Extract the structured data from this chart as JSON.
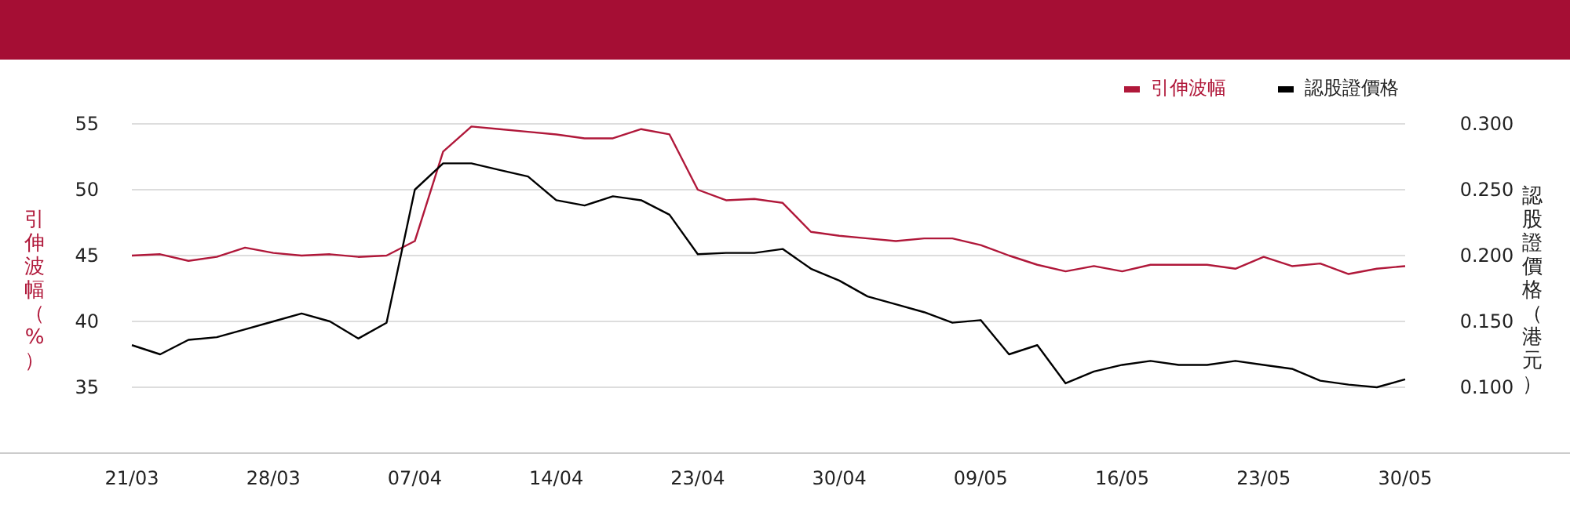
{
  "chart_data": {
    "type": "line",
    "categories": [
      "21/03",
      null,
      null,
      null,
      null,
      "28/03",
      null,
      null,
      null,
      null,
      "07/04",
      null,
      null,
      null,
      null,
      "14/04",
      null,
      null,
      null,
      null,
      "23/04",
      null,
      null,
      null,
      null,
      "30/04",
      null,
      null,
      null,
      null,
      "09/05",
      null,
      null,
      null,
      null,
      "16/05",
      null,
      null,
      null,
      null,
      "23/05",
      null,
      null,
      null,
      null,
      "30/05"
    ],
    "series": [
      {
        "name": "引伸波幅",
        "color": "#b0183a",
        "values": [
          45.0,
          45.1,
          44.6,
          44.9,
          45.6,
          45.2,
          45.0,
          45.1,
          44.9,
          45.0,
          46.1,
          52.9,
          54.8,
          54.6,
          54.4,
          54.2,
          53.9,
          53.9,
          54.6,
          54.2,
          50.0,
          49.2,
          49.3,
          49.0,
          46.8,
          46.5,
          46.3,
          46.1,
          46.3,
          46.3,
          45.8,
          45.0,
          44.3,
          43.8,
          44.2,
          43.8,
          44.3,
          44.3,
          44.3,
          44.0,
          44.9,
          44.2,
          44.4,
          43.6,
          44.0,
          44.2
        ]
      },
      {
        "name": "認股證價格",
        "color": "#000000",
        "axis": "y2",
        "values": [
          0.132,
          0.125,
          0.136,
          0.138,
          0.144,
          0.15,
          0.156,
          0.15,
          0.137,
          0.149,
          0.25,
          0.27,
          0.27,
          0.265,
          0.26,
          0.242,
          0.238,
          0.245,
          0.242,
          0.231,
          0.201,
          0.202,
          0.202,
          0.205,
          0.19,
          0.181,
          0.169,
          0.163,
          0.157,
          0.149,
          0.151,
          0.125,
          0.132,
          0.103,
          0.112,
          0.117,
          0.12,
          0.117,
          0.117,
          0.12,
          0.117,
          0.114,
          0.105,
          0.102,
          0.1,
          0.106
        ]
      }
    ],
    "ylabel": "引伸波幅（%）",
    "y2label": "認股證價格（港元）",
    "ylim": [
      30,
      55
    ],
    "yticks": [
      35,
      40,
      45,
      50,
      55
    ],
    "y2lim": [
      0.05,
      0.3
    ],
    "y2ticks": [
      {
        "value": 0.1,
        "label": "0.100"
      },
      {
        "value": 0.15,
        "label": "0.150"
      },
      {
        "value": 0.2,
        "label": "0.200"
      },
      {
        "value": 0.25,
        "label": "0.250"
      },
      {
        "value": 0.3,
        "label": "0.300"
      }
    ],
    "grid": "y",
    "legend": "top right",
    "marker": "none",
    "line_style": "solid"
  }
}
